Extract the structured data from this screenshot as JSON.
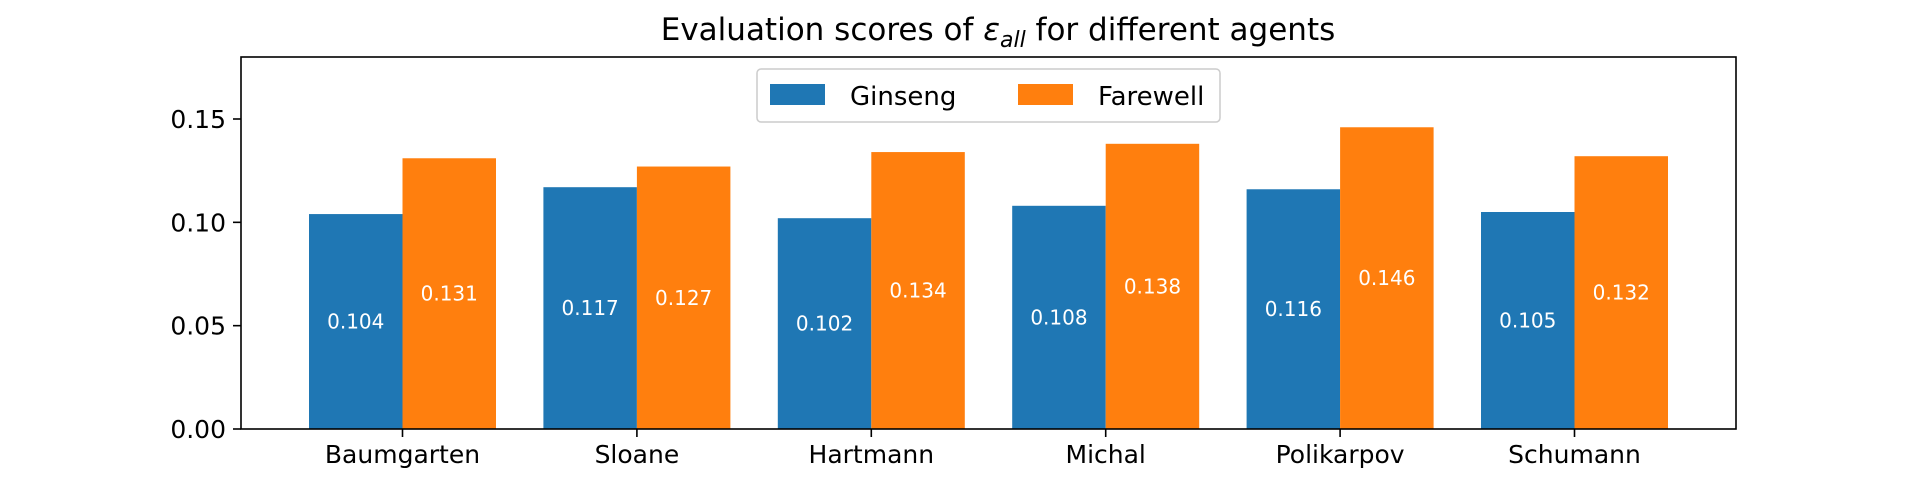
{
  "chart_data": {
    "type": "bar",
    "title": {
      "prefix": "Evaluation scores of ",
      "symbol": "ε",
      "subscript": "all",
      "suffix": " for different agents"
    },
    "xlabel": "",
    "ylabel": "",
    "categories": [
      "Baumgarten",
      "Sloane",
      "Hartmann",
      "Michal",
      "Polikarpov",
      "Schumann"
    ],
    "series": [
      {
        "name": "Ginseng",
        "color": "#1f77b4",
        "values": [
          0.104,
          0.117,
          0.102,
          0.108,
          0.116,
          0.105
        ]
      },
      {
        "name": "Farewell",
        "color": "#ff7f0e",
        "values": [
          0.131,
          0.127,
          0.134,
          0.138,
          0.146,
          0.132
        ]
      }
    ],
    "value_labels": {
      "Ginseng": [
        "0.104",
        "0.117",
        "0.102",
        "0.108",
        "0.116",
        "0.105"
      ],
      "Farewell": [
        "0.131",
        "0.127",
        "0.134",
        "0.138",
        "0.146",
        "0.132"
      ]
    },
    "ylim": [
      0,
      0.18
    ],
    "yticks": [
      0.0,
      0.05,
      0.1,
      0.15
    ],
    "ytick_labels": [
      "0.00",
      "0.05",
      "0.10",
      "0.15"
    ],
    "grid": false,
    "legend": {
      "placement": "top-center",
      "entries": [
        "Ginseng",
        "Farewell"
      ]
    }
  }
}
